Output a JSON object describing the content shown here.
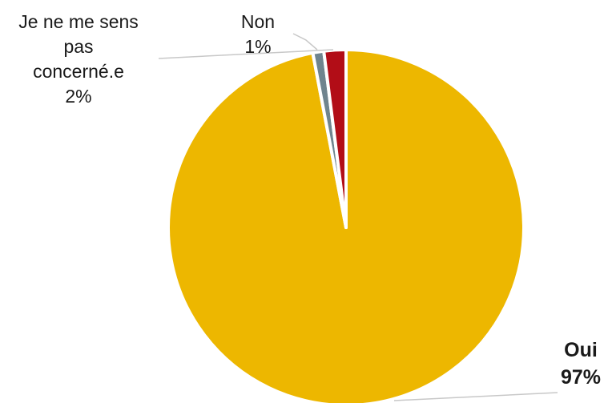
{
  "chart_data": {
    "type": "pie",
    "title": "",
    "slices": [
      {
        "label": "Oui",
        "value": 97,
        "display": "97%",
        "color": "#EDB700"
      },
      {
        "label": "Non",
        "value": 1,
        "display": "1%",
        "color": "#6F848E"
      },
      {
        "label": "Je ne me sens pas concerné.e",
        "value": 2,
        "display": "2%",
        "color": "#B20D17"
      }
    ],
    "start_angle_deg": 0,
    "direction": "clockwise",
    "legend": "none"
  },
  "labels": {
    "oui_name": "Oui",
    "oui_pct": "97%",
    "non_name": "Non",
    "non_pct": "1%",
    "concerne_line1": "Je ne me sens",
    "concerne_line2": "pas",
    "concerne_line3": "concerné.e",
    "concerne_pct": "2%"
  }
}
